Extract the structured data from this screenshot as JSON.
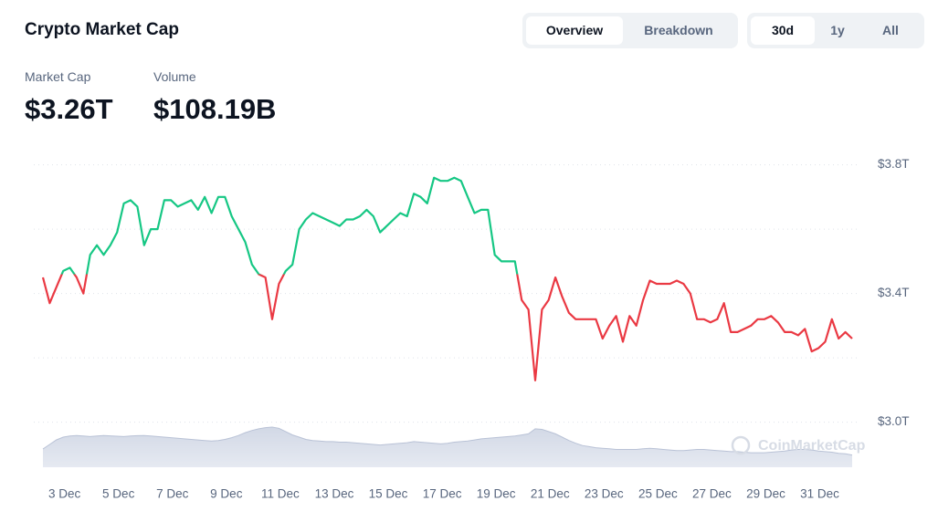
{
  "header": {
    "title": "Crypto Market Cap"
  },
  "views": [
    "Overview",
    "Breakdown"
  ],
  "active_view": 0,
  "ranges": [
    "30d",
    "1y",
    "All"
  ],
  "active_range": 0,
  "stats": [
    {
      "label": "Market Cap",
      "value": "$3.26T"
    },
    {
      "label": "Volume",
      "value": "$108.19B"
    }
  ],
  "chart_data": {
    "type": "line",
    "watermark": "CoinMarketCap",
    "x": [
      2.2,
      2.45,
      2.7,
      2.95,
      3.2,
      3.45,
      3.7,
      3.95,
      4.2,
      4.45,
      4.7,
      4.95,
      5.2,
      5.45,
      5.7,
      5.95,
      6.2,
      6.45,
      6.7,
      6.95,
      7.2,
      7.45,
      7.7,
      7.95,
      8.2,
      8.45,
      8.7,
      8.95,
      9.2,
      9.45,
      9.7,
      9.95,
      10.2,
      10.45,
      10.7,
      10.95,
      11.2,
      11.45,
      11.7,
      11.95,
      12.2,
      12.45,
      12.7,
      12.95,
      13.2,
      13.45,
      13.7,
      13.95,
      14.2,
      14.45,
      14.7,
      14.95,
      15.2,
      15.45,
      15.7,
      15.95,
      16.2,
      16.45,
      16.7,
      16.95,
      17.2,
      17.45,
      17.7,
      17.95,
      18.2,
      18.45,
      18.7,
      18.95,
      19.2,
      19.45,
      19.7,
      19.95,
      20.2,
      20.45,
      20.7,
      20.95,
      21.2,
      21.45,
      21.7,
      21.95,
      22.2,
      22.45,
      22.7,
      22.95,
      23.2,
      23.45,
      23.7,
      23.95,
      24.2,
      24.45,
      24.7,
      24.95,
      25.2,
      25.45,
      25.7,
      25.95,
      26.2,
      26.45,
      26.7,
      26.95,
      27.2,
      27.45,
      27.7,
      27.95,
      28.2,
      28.45,
      28.7,
      28.95,
      29.2,
      29.45,
      29.7,
      29.95,
      30.2,
      30.45,
      30.7,
      30.95,
      31.2,
      31.45,
      31.7,
      31.95,
      32.2
    ],
    "xlim": [
      2.2,
      32.2
    ],
    "xticks": [
      {
        "value": 3,
        "label": "3 Dec"
      },
      {
        "value": 5,
        "label": "5 Dec"
      },
      {
        "value": 7,
        "label": "7 Dec"
      },
      {
        "value": 9,
        "label": "9 Dec"
      },
      {
        "value": 11,
        "label": "11 Dec"
      },
      {
        "value": 13,
        "label": "13 Dec"
      },
      {
        "value": 15,
        "label": "15 Dec"
      },
      {
        "value": 17,
        "label": "17 Dec"
      },
      {
        "value": 19,
        "label": "19 Dec"
      },
      {
        "value": 21,
        "label": "21 Dec"
      },
      {
        "value": 23,
        "label": "23 Dec"
      },
      {
        "value": 25,
        "label": "25 Dec"
      },
      {
        "value": 27,
        "label": "27 Dec"
      },
      {
        "value": 29,
        "label": "29 Dec"
      },
      {
        "value": 31,
        "label": "31 Dec"
      }
    ],
    "ylim": [
      2.86,
      3.83
    ],
    "yticks": [
      {
        "value": 3.0,
        "label": "$3.0T"
      },
      {
        "value": 3.4,
        "label": "$3.4T"
      },
      {
        "value": 3.8,
        "label": "$3.8T"
      }
    ],
    "ygrid": [
      3.0,
      3.2,
      3.4,
      3.6,
      3.8
    ],
    "y2lim": [
      0,
      2800
    ],
    "series": [
      {
        "color_above": "#16c784",
        "color_below": "#ea3943",
        "baseline": 3.46,
        "values": [
          3.45,
          3.37,
          3.42,
          3.47,
          3.48,
          3.45,
          3.4,
          3.52,
          3.55,
          3.52,
          3.55,
          3.59,
          3.68,
          3.69,
          3.67,
          3.55,
          3.6,
          3.6,
          3.69,
          3.69,
          3.67,
          3.68,
          3.69,
          3.66,
          3.7,
          3.65,
          3.7,
          3.7,
          3.64,
          3.6,
          3.56,
          3.49,
          3.46,
          3.45,
          3.32,
          3.43,
          3.47,
          3.49,
          3.6,
          3.63,
          3.65,
          3.64,
          3.63,
          3.62,
          3.61,
          3.63,
          3.63,
          3.64,
          3.66,
          3.64,
          3.59,
          3.61,
          3.63,
          3.65,
          3.64,
          3.71,
          3.7,
          3.68,
          3.76,
          3.75,
          3.75,
          3.76,
          3.75,
          3.7,
          3.65,
          3.66,
          3.66,
          3.52,
          3.5,
          3.5,
          3.5,
          3.38,
          3.35,
          3.13,
          3.35,
          3.38,
          3.45,
          3.39,
          3.34,
          3.32,
          3.32,
          3.32,
          3.32,
          3.26,
          3.3,
          3.33,
          3.25,
          3.33,
          3.3,
          3.38,
          3.44,
          3.43,
          3.43,
          3.43,
          3.44,
          3.43,
          3.4,
          3.32,
          3.32,
          3.31,
          3.32,
          3.37,
          3.28,
          3.28,
          3.29,
          3.3,
          3.32,
          3.32,
          3.33,
          3.31,
          3.28,
          3.28,
          3.27,
          3.29,
          3.22,
          3.23,
          3.25,
          3.32,
          3.26,
          3.28,
          3.26
        ]
      },
      {
        "axis": "y2",
        "color": "#cfd6e4",
        "values": [
          164,
          205,
          246,
          270,
          280,
          285,
          280,
          275,
          280,
          285,
          282,
          278,
          275,
          280,
          283,
          285,
          280,
          275,
          270,
          265,
          260,
          255,
          250,
          245,
          240,
          235,
          240,
          250,
          265,
          285,
          310,
          330,
          345,
          355,
          360,
          350,
          320,
          290,
          270,
          250,
          240,
          235,
          230,
          230,
          225,
          225,
          220,
          215,
          210,
          205,
          200,
          205,
          210,
          215,
          220,
          230,
          225,
          220,
          215,
          210,
          215,
          225,
          230,
          235,
          245,
          255,
          260,
          265,
          270,
          275,
          280,
          290,
          300,
          345,
          340,
          320,
          300,
          270,
          240,
          215,
          195,
          185,
          175,
          170,
          165,
          160,
          160,
          160,
          160,
          165,
          170,
          165,
          160,
          155,
          150,
          150,
          155,
          160,
          160,
          155,
          150,
          145,
          140,
          140,
          135,
          130,
          130,
          130,
          135,
          140,
          145,
          155,
          160,
          160,
          155,
          145,
          140,
          135,
          125,
          120,
          110
        ]
      }
    ]
  }
}
